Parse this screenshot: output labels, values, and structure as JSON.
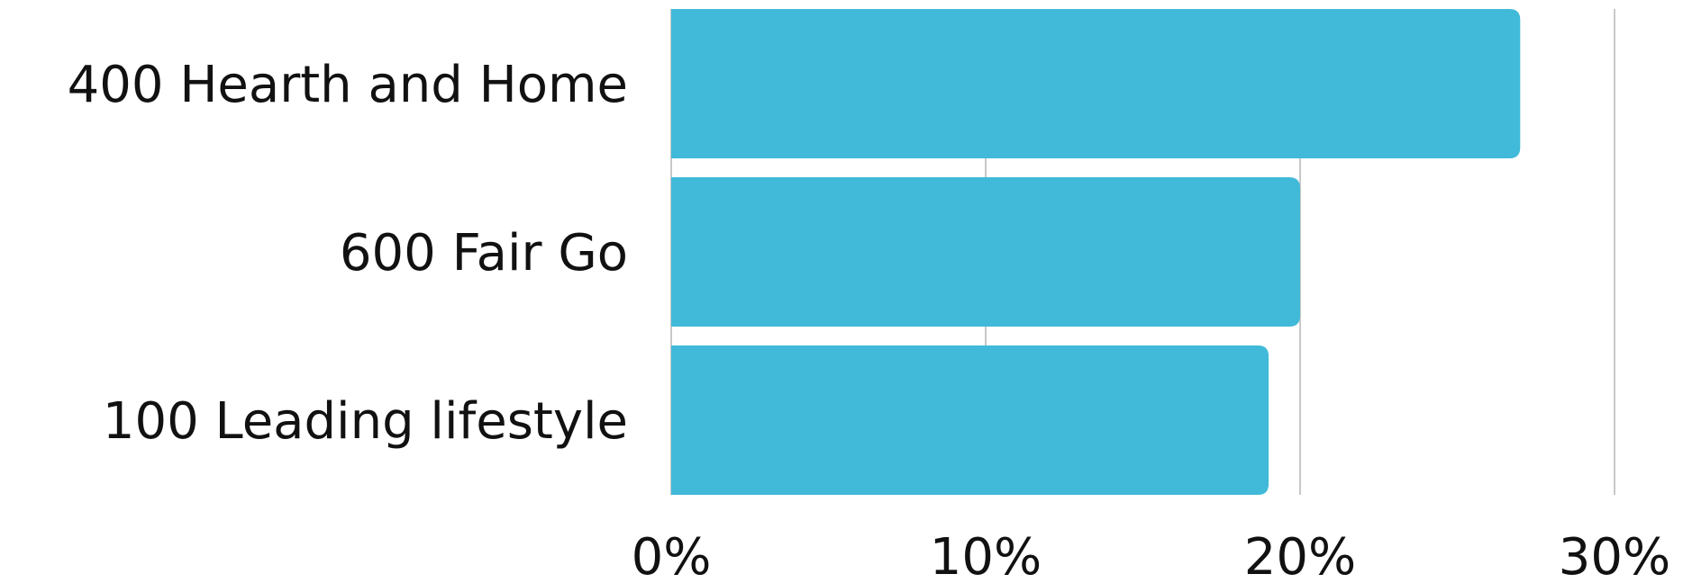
{
  "chart_data": {
    "type": "bar",
    "orientation": "horizontal",
    "categories": [
      "400 Hearth and Home",
      "600 Fair Go",
      "100 Leading lifestyle"
    ],
    "values": [
      27,
      20,
      19
    ],
    "value_unit": "%",
    "xlim": [
      0,
      30
    ],
    "x_ticks": [
      0,
      10,
      20,
      30
    ],
    "x_tick_labels": [
      "0%",
      "10%",
      "20%",
      "30%"
    ],
    "title": "",
    "xlabel": "",
    "ylabel": "",
    "grid": true,
    "legend": "none",
    "bar_color": "#40BAD8"
  }
}
